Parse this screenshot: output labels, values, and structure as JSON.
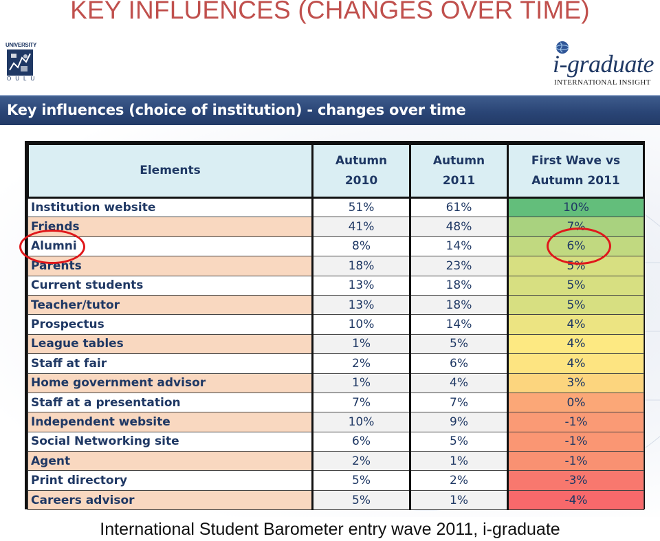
{
  "slide": {
    "title": "KEY INFLUENCES (CHANGES OVER TIME)",
    "banner": "Key influences (choice of institution) - changes over time",
    "caption": "International Student Barometer entry wave 2011, i-graduate"
  },
  "logos": {
    "university": {
      "top": "UNIVERSITY",
      "bottom": "OULU"
    },
    "igraduate": {
      "word": "i-graduate",
      "sub": "INTERNATIONAL INSIGHT"
    }
  },
  "chart_data": {
    "type": "table",
    "columns": [
      "Elements",
      "Autumn 2010",
      "Autumn 2011",
      "First Wave vs Autumn 2011"
    ],
    "rows": [
      {
        "element": "Institution website",
        "autumn_2010": "51%",
        "autumn_2011": "61%",
        "change": "10%",
        "change_color": "#63be7b"
      },
      {
        "element": "Friends",
        "autumn_2010": "41%",
        "autumn_2011": "48%",
        "change": "7%",
        "change_color": "#a9d27f"
      },
      {
        "element": "Alumni",
        "autumn_2010": "8%",
        "autumn_2011": "14%",
        "change": "6%",
        "change_color": "#c1d980"
      },
      {
        "element": "Parents",
        "autumn_2010": "18%",
        "autumn_2011": "23%",
        "change": "5%",
        "change_color": "#d7df81"
      },
      {
        "element": "Current students",
        "autumn_2010": "13%",
        "autumn_2011": "18%",
        "change": "5%",
        "change_color": "#d7df81"
      },
      {
        "element": "Teacher/tutor",
        "autumn_2010": "13%",
        "autumn_2011": "18%",
        "change": "5%",
        "change_color": "#d7df81"
      },
      {
        "element": "Prospectus",
        "autumn_2010": "10%",
        "autumn_2011": "14%",
        "change": "4%",
        "change_color": "#ece482"
      },
      {
        "element": "League tables",
        "autumn_2010": "1%",
        "autumn_2011": "5%",
        "change": "4%",
        "change_color": "#fde982"
      },
      {
        "element": "Staff at fair",
        "autumn_2010": "2%",
        "autumn_2011": "6%",
        "change": "4%",
        "change_color": "#fde481"
      },
      {
        "element": "Home government advisor",
        "autumn_2010": "1%",
        "autumn_2011": "4%",
        "change": "3%",
        "change_color": "#fcd57e"
      },
      {
        "element": "Staff at a presentation",
        "autumn_2010": "7%",
        "autumn_2011": "7%",
        "change": "0%",
        "change_color": "#fba777"
      },
      {
        "element": "Independent website",
        "autumn_2010": "10%",
        "autumn_2011": "9%",
        "change": "-1%",
        "change_color": "#fa9a75"
      },
      {
        "element": "Social Networking site",
        "autumn_2010": "6%",
        "autumn_2011": "5%",
        "change": "-1%",
        "change_color": "#fa9673"
      },
      {
        "element": "Agent",
        "autumn_2010": "2%",
        "autumn_2011": "1%",
        "change": "-1%",
        "change_color": "#f99172"
      },
      {
        "element": "Print directory",
        "autumn_2010": "5%",
        "autumn_2011": "2%",
        "change": "-3%",
        "change_color": "#f8786e"
      },
      {
        "element": "Careers advisor",
        "autumn_2010": "5%",
        "autumn_2011": "1%",
        "change": "-4%",
        "change_color": "#f8696b"
      }
    ],
    "highlight_circles_color": "#e0181b"
  }
}
